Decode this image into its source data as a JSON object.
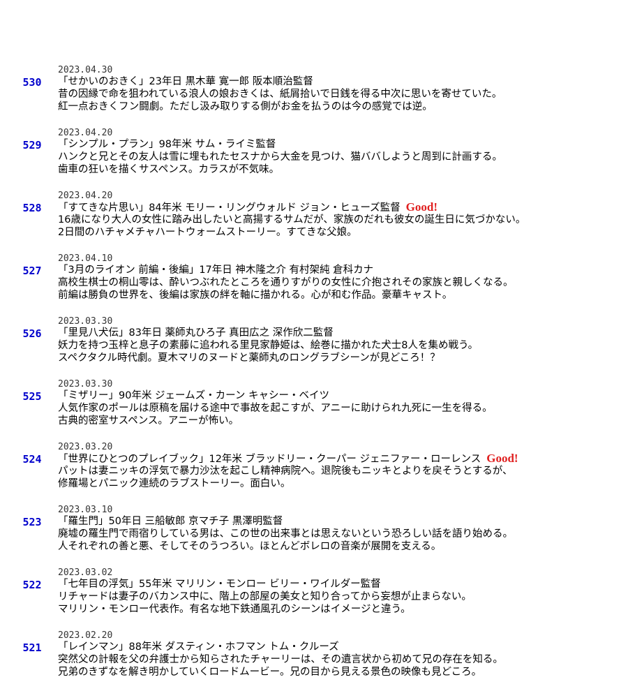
{
  "entries": [
    {
      "number": "530",
      "date": "2023.04.30",
      "title": "「せかいのおきく」23年日 黒木華 寛一郎 阪本順治監督",
      "lines": [
        "昔の因縁で命を狙われている浪人の娘おきくは、紙屑拾いで日銭を得る中次に思いを寄せていた。",
        "紅一点おきくフン闘劇。ただし汲み取りする側がお金を払うのは今の感覚では逆。"
      ]
    },
    {
      "number": "529",
      "date": "2023.04.20",
      "title": "「シンプル・プラン」98年米 サム・ライミ監督",
      "lines": [
        "ハンクと兄とその友人は雪に埋もれたセスナから大金を見つけ、猫ババしようと周到に計画する。",
        "歯車の狂いを描くサスペンス。カラスが不気味。"
      ]
    },
    {
      "number": "528",
      "date": "2023.04.20",
      "title": "「すてきな片思い」84年米 モリー・リングウォルド ジョン・ヒューズ監督",
      "badge": "Good!",
      "lines": [
        "16歳になり大人の女性に踏み出したいと高揚するサムだが、家族のだれも彼女の誕生日に気づかない。",
        "2日間のハチャメチャハートウォームストーリー。すてきな父娘。"
      ]
    },
    {
      "number": "527",
      "date": "2023.04.10",
      "title": "「3月のライオン 前編・後編」17年日 神木隆之介 有村架純 倉科カナ",
      "lines": [
        "高校生棋士の桐山零は、酔いつぶれたところを通りすがりの女性に介抱されその家族と親しくなる。",
        "前編は勝負の世界を、後編は家族の絆を軸に描かれる。心が和む作品。豪華キャスト。"
      ]
    },
    {
      "number": "526",
      "date": "2023.03.30",
      "title": "「里見八犬伝」83年日 薬師丸ひろ子 真田広之 深作欣二監督",
      "lines": [
        "妖力を持つ玉梓と息子の素藤に追われる里見家静姫は、絵巻に描かれた犬士8人を集め戦う。",
        "スペクタクル時代劇。夏木マリのヌードと薬師丸のロングラブシーンが見どころ！？"
      ]
    },
    {
      "number": "525",
      "date": "2023.03.30",
      "title": "「ミザリー」90年米 ジェームズ・カーン キャシー・ベイツ",
      "lines": [
        "人気作家のポールは原稿を届ける途中で事故を起こすが、アニーに助けられ九死に一生を得る。",
        "古典的密室サスペンス。アニーが怖い。"
      ]
    },
    {
      "number": "524",
      "date": "2023.03.20",
      "title": "「世界にひとつのプレイブック」12年米 ブラッドリー・クーパー ジェニファー・ローレンス",
      "badge": "Good!",
      "lines": [
        "パットは妻ニッキの浮気で暴力沙汰を起こし精神病院へ。退院後もニッキとよりを戻そうとするが、",
        "修羅場とパニック連続のラブストーリー。面白い。"
      ]
    },
    {
      "number": "523",
      "date": "2023.03.10",
      "title": "「羅生門」50年日 三船敏郎 京マチ子 黒澤明監督",
      "lines": [
        "廃墟の羅生門で雨宿りしている男は、この世の出来事とは思えないという恐ろしい話を語り始める。",
        "人それぞれの善と悪、そしてそのうつろい。ほとんどボレロの音楽が展開を支える。"
      ]
    },
    {
      "number": "522",
      "date": "2023.03.02",
      "title": "「七年目の浮気」55年米 マリリン・モンロー ビリー・ワイルダー監督",
      "lines": [
        "リチャードは妻子のバカンス中に、階上の部屋の美女と知り合ってから妄想が止まらない。",
        "マリリン・モンロー代表作。有名な地下鉄通風孔のシーンはイメージと違う。"
      ]
    },
    {
      "number": "521",
      "date": "2023.02.20",
      "title": "「レインマン」88年米 ダスティン・ホフマン トム・クルーズ",
      "lines": [
        "突然父の計報を父の弁護士から知らされたチャーリーは、その遺言状から初めて兄の存在を知る。",
        "兄弟のきずなを解き明かしていくロードムービー。兄の目から見える景色の映像も見どころ。"
      ]
    }
  ]
}
